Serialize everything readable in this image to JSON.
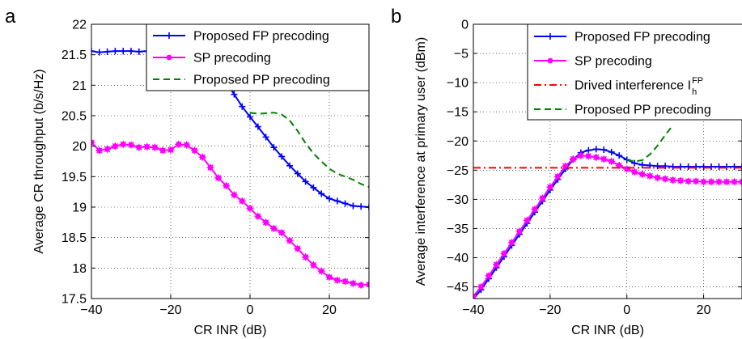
{
  "chart_data": [
    {
      "panel_label": "a",
      "type": "line",
      "xlabel": "CR INR (dB)",
      "ylabel": "Average CR throughput (b/s/Hz)",
      "xlim": [
        -40,
        30
      ],
      "ylim": [
        17.5,
        22
      ],
      "xticks": [
        -40,
        -20,
        0,
        20
      ],
      "xtick_labels": [
        "−40",
        "−20",
        "0",
        "20"
      ],
      "yticks": [
        17.5,
        18,
        18.5,
        19,
        19.5,
        20,
        20.5,
        21,
        21.5,
        22
      ],
      "ytick_labels": [
        "17.5",
        "18",
        "18.5",
        "19",
        "19.5",
        "20",
        "20.5",
        "21",
        "21.5",
        "22"
      ],
      "grid": true,
      "legend_position": "top-right",
      "series": [
        {
          "name": "Proposed FP precoding",
          "color": "#0000ff",
          "dash": "solid",
          "marker": "plus",
          "x": [
            -40,
            -38,
            -36,
            -34,
            -32,
            -30,
            -28,
            -26,
            -24,
            -22,
            -20,
            -18,
            -16,
            -14,
            -12,
            -10,
            -8,
            -6,
            -4,
            -2,
            0,
            2,
            4,
            6,
            8,
            10,
            12,
            14,
            16,
            18,
            20,
            22,
            24,
            26,
            28,
            30
          ],
          "y": [
            21.56,
            21.54,
            21.55,
            21.56,
            21.56,
            21.56,
            21.55,
            21.56,
            21.56,
            21.55,
            21.56,
            21.55,
            21.5,
            21.45,
            21.4,
            21.3,
            21.2,
            21.05,
            20.85,
            20.65,
            20.48,
            20.32,
            20.15,
            19.98,
            19.83,
            19.68,
            19.55,
            19.42,
            19.32,
            19.22,
            19.14,
            19.1,
            19.06,
            19.02,
            19.01,
            19.0
          ]
        },
        {
          "name": "SP precoding",
          "color": "#ff00ff",
          "dash": "solid",
          "marker": "star",
          "x": [
            -40,
            -38,
            -36,
            -34,
            -32,
            -30,
            -28,
            -26,
            -24,
            -22,
            -20,
            -18,
            -16,
            -14,
            -12,
            -10,
            -8,
            -6,
            -4,
            -2,
            0,
            2,
            4,
            6,
            8,
            10,
            12,
            14,
            16,
            18,
            20,
            22,
            24,
            26,
            28,
            30
          ],
          "y": [
            20.06,
            19.93,
            19.95,
            20.0,
            20.03,
            20.02,
            19.98,
            19.99,
            19.98,
            19.93,
            19.94,
            20.03,
            20.02,
            19.93,
            19.82,
            19.65,
            19.48,
            19.35,
            19.2,
            19.1,
            18.98,
            18.85,
            18.75,
            18.65,
            18.58,
            18.45,
            18.32,
            18.18,
            18.05,
            17.95,
            17.85,
            17.8,
            17.78,
            17.75,
            17.72,
            17.73
          ]
        },
        {
          "name": "Proposed PP precoding",
          "color": "#007f00",
          "dash": "dashed",
          "marker": "none",
          "x": [
            0,
            2,
            4,
            6,
            8,
            10,
            12,
            14,
            16,
            18,
            20,
            22,
            24,
            26,
            28,
            30
          ],
          "y": [
            20.55,
            20.53,
            20.54,
            20.55,
            20.52,
            20.42,
            20.25,
            20.05,
            19.88,
            19.75,
            19.63,
            19.55,
            19.5,
            19.45,
            19.38,
            19.33
          ]
        }
      ]
    },
    {
      "panel_label": "b",
      "type": "line",
      "xlabel": "CR INR (dB)",
      "ylabel": "Average interference at primary user (dBm)",
      "xlim": [
        -40,
        30
      ],
      "ylim": [
        -47,
        0
      ],
      "xticks": [
        -40,
        -20,
        0,
        20
      ],
      "xtick_labels": [
        "−40",
        "−20",
        "0",
        "20"
      ],
      "yticks": [
        -45,
        -40,
        -35,
        -30,
        -25,
        -20,
        -15,
        -10,
        -5,
        0
      ],
      "ytick_labels": [
        "−45",
        "−40",
        "−35",
        "−30",
        "−25",
        "−20",
        "−15",
        "−10",
        "−5",
        "0"
      ],
      "grid": true,
      "legend_position": "top-right",
      "series": [
        {
          "name": "Proposed FP precoding",
          "color": "#0000ff",
          "dash": "solid",
          "marker": "plus",
          "x": [
            -40,
            -38,
            -36,
            -34,
            -32,
            -30,
            -28,
            -26,
            -24,
            -22,
            -20,
            -18,
            -16,
            -14,
            -12,
            -10,
            -8,
            -6,
            -4,
            -2,
            0,
            2,
            4,
            6,
            8,
            10,
            12,
            14,
            16,
            18,
            20,
            22,
            24,
            26,
            28,
            30
          ],
          "y": [
            -47.0,
            -45.5,
            -43.6,
            -41.7,
            -39.8,
            -37.9,
            -36.0,
            -34.1,
            -32.2,
            -30.3,
            -28.4,
            -26.6,
            -24.8,
            -23.2,
            -22.0,
            -21.6,
            -21.4,
            -21.5,
            -21.9,
            -22.5,
            -23.2,
            -23.8,
            -24.1,
            -24.2,
            -24.3,
            -24.3,
            -24.4,
            -24.4,
            -24.4,
            -24.4,
            -24.4,
            -24.4,
            -24.4,
            -24.4,
            -24.4,
            -24.4
          ]
        },
        {
          "name": "SP precoding",
          "color": "#ff00ff",
          "dash": "solid",
          "marker": "star",
          "x": [
            -40,
            -38,
            -36,
            -34,
            -32,
            -30,
            -28,
            -26,
            -24,
            -22,
            -20,
            -18,
            -16,
            -14,
            -12,
            -10,
            -8,
            -6,
            -4,
            -2,
            0,
            2,
            4,
            6,
            8,
            10,
            12,
            14,
            16,
            18,
            20,
            22,
            24,
            26,
            28,
            30
          ],
          "y": [
            -46.6,
            -45.0,
            -43.1,
            -41.2,
            -39.3,
            -37.4,
            -35.5,
            -33.6,
            -31.7,
            -29.8,
            -27.9,
            -26.1,
            -24.3,
            -23.1,
            -22.5,
            -22.6,
            -22.8,
            -23.1,
            -23.5,
            -24.2,
            -24.8,
            -25.3,
            -25.7,
            -26.0,
            -26.3,
            -26.5,
            -26.7,
            -26.8,
            -26.9,
            -26.9,
            -27.0,
            -27.0,
            -27.0,
            -27.0,
            -27.0,
            -27.0
          ]
        },
        {
          "name": "Drived interference I",
          "name_superscript": "FP",
          "name_subscript": "h",
          "color": "#ff0000",
          "dash": "dashdot",
          "marker": "none",
          "x": [
            -40,
            30
          ],
          "y": [
            -24.6,
            -24.6
          ]
        },
        {
          "name": "Proposed PP precoding",
          "color": "#007f00",
          "dash": "dashed",
          "marker": "none",
          "x": [
            0,
            2,
            4,
            6,
            8,
            10,
            12
          ],
          "y": [
            -23.2,
            -23.5,
            -23.3,
            -22.3,
            -20.8,
            -19.0,
            -17.3
          ]
        }
      ]
    }
  ]
}
